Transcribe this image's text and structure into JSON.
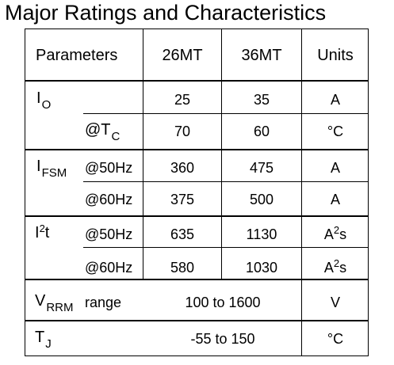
{
  "title": "Major Ratings and Characteristics",
  "header": {
    "parameters": "Parameters",
    "col1": "26MT",
    "col2": "36MT",
    "units": "Units"
  },
  "rows": {
    "io": {
      "sym": "I",
      "sub": "O",
      "val1": "25",
      "val2": "35",
      "unit": "A"
    },
    "tc": {
      "cond_prefix": "@T",
      "cond_sub": "C",
      "val1": "70",
      "val2": "60",
      "unit": "°C"
    },
    "ifsm50": {
      "sym": "I",
      "sub": "FSM",
      "cond": "@50Hz",
      "val1": "360",
      "val2": "475",
      "unit": "A"
    },
    "ifsm60": {
      "cond": "@60Hz",
      "val1": "375",
      "val2": "500",
      "unit": "A"
    },
    "i2t50": {
      "sym": "I",
      "sup": "2",
      "sym_after": "t",
      "cond": "@50Hz",
      "val1": "635",
      "val2": "1130",
      "unit_base": "A",
      "unit_sup": "2",
      "unit_after": "s"
    },
    "i2t60": {
      "cond": "@60Hz",
      "val1": "580",
      "val2": "1030",
      "unit_base": "A",
      "unit_sup": "2",
      "unit_after": "s"
    },
    "vrrm": {
      "sym": "V",
      "sub": "RRM",
      "cond": "range",
      "val": "100 to 1600",
      "unit": "V"
    },
    "tj": {
      "sym": "T",
      "sub": "J",
      "val": "-55 to 150",
      "unit": "°C"
    }
  }
}
